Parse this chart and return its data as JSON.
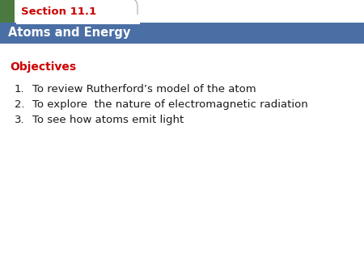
{
  "section_label": "Section 11.1",
  "section_tab_bg": "#ffffff",
  "section_tab_text_color": "#cc0000",
  "green_square_color": "#4a7a3f",
  "blue_bar_text": "Atoms and Energy",
  "blue_bar_bg": "#4a6fa5",
  "blue_bar_text_color": "#ffffff",
  "objectives_label": "Objectives",
  "objectives_color": "#cc0000",
  "items": [
    "To review Rutherford’s model of the atom",
    "To explore  the nature of electromagnetic radiation",
    "To see how atoms emit light"
  ],
  "item_color": "#1a1a1a",
  "background_color": "#ffffff",
  "tab_border_color": "#aaaaaa",
  "fig_width": 4.5,
  "fig_height": 3.38,
  "dpi": 100
}
